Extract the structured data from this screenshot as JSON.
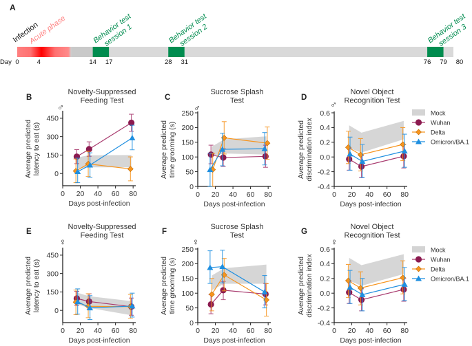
{
  "panel_a": {
    "letter": "A",
    "day_label": "Day",
    "infection_label": "Infection",
    "acute_label": "Acute phase",
    "sessions": [
      {
        "line1": "Behavior test",
        "line2": "session 1",
        "start": 14,
        "end": 17
      },
      {
        "line1": "Behavior test",
        "line2": "session 2",
        "start": 28,
        "end": 31
      },
      {
        "line1": "Behavior test",
        "line2": "session 3",
        "start": 76,
        "end": 79
      }
    ],
    "day_ticks": [
      "0",
      "4",
      "14",
      "17",
      "28",
      "31",
      "76",
      "79",
      "80"
    ],
    "colors": {
      "acute": "#ff0000",
      "session": "#008c4f",
      "bar": "#d9d9d9"
    }
  },
  "legend": {
    "mock": "Mock",
    "wuhan": "Wuhan",
    "delta": "Delta",
    "omicron": "Omicron/BA.1"
  },
  "colors": {
    "mock": "#d4d4d4",
    "wuhan": "#8b1a4f",
    "wuhan_line": "#a83a6e",
    "delta": "#f7941d",
    "omicron": "#1f8fe0"
  },
  "chart_data": [
    {
      "panel": "B",
      "sex": "♂",
      "type": "line",
      "title": [
        "Novelty-Suppressed",
        "Feeding Test"
      ],
      "ylabel": [
        "Average predicted",
        "latency to eat (s)"
      ],
      "xlabel": "Days post-infection",
      "xlim": [
        0,
        83
      ],
      "ylim": [
        -100,
        500
      ],
      "xticks": [
        0,
        20,
        40,
        60,
        80
      ],
      "yticks": [
        0,
        150,
        300,
        450
      ],
      "legend": false,
      "mock": {
        "x": [
          16,
          30,
          78
        ],
        "upper": [
          130,
          148,
          150
        ],
        "lower": [
          40,
          50,
          50
        ]
      },
      "series": [
        {
          "name": "Wuhan",
          "x": [
            16,
            30,
            78
          ],
          "y": [
            137,
            198,
            413
          ],
          "err": [
            [
              80,
              195
            ],
            [
              140,
              258
            ],
            [
              343,
              483
            ]
          ]
        },
        {
          "name": "Delta",
          "x": [
            15,
            29,
            77
          ],
          "y": [
            20,
            78,
            37
          ],
          "err": [
            [
              -75,
              118
            ],
            [
              -25,
              180
            ],
            [
              -60,
              135
            ]
          ]
        },
        {
          "name": "Omicron/BA.1",
          "x": [
            17,
            31,
            79
          ],
          "y": [
            15,
            68,
            290
          ],
          "err": [
            [
              -75,
              125
            ],
            [
              -30,
              168
            ],
            [
              193,
              393
            ]
          ]
        }
      ]
    },
    {
      "panel": "C",
      "sex": "♂",
      "type": "line",
      "title": [
        "Sucrose Splash",
        "Test"
      ],
      "ylabel": [
        "Average predicted",
        "time grooming (s)"
      ],
      "xlabel": "Days post-infection",
      "xlim": [
        0,
        83
      ],
      "ylim": [
        0,
        250
      ],
      "xticks": [
        0,
        20,
        40,
        60,
        80
      ],
      "yticks": [
        0,
        50,
        100,
        150,
        200,
        250
      ],
      "legend": false,
      "mock": {
        "x": [
          16,
          30,
          78
        ],
        "upper": [
          135,
          160,
          170
        ],
        "lower": [
          105,
          112,
          108
        ]
      },
      "series": [
        {
          "name": "Wuhan",
          "x": [
            15,
            29,
            77
          ],
          "y": [
            108,
            98,
            102
          ],
          "err": [
            [
              77,
              140
            ],
            [
              68,
              128
            ],
            [
              65,
              140
            ]
          ]
        },
        {
          "name": "Delta",
          "x": [
            17,
            30,
            79
          ],
          "y": [
            57,
            165,
            147
          ],
          "err": [
            [
              0,
              112
            ],
            [
              110,
              220
            ],
            [
              92,
              202
            ]
          ]
        },
        {
          "name": "Omicron/BA.1",
          "x": [
            14,
            28,
            76
          ],
          "y": [
            57,
            126,
            128
          ],
          "err": [
            [
              0,
              113
            ],
            [
              70,
              181
            ],
            [
              73,
              183
            ]
          ]
        }
      ]
    },
    {
      "panel": "D",
      "sex": "♂",
      "type": "line",
      "title": [
        "Novel Object",
        "Recognition Test"
      ],
      "ylabel": [
        "Average predicted",
        "discrimination index"
      ],
      "xlabel": "Days post-infection",
      "xlim": [
        0,
        83
      ],
      "ylim": [
        -0.4,
        0.6
      ],
      "xticks": [
        0,
        20,
        40,
        60,
        80
      ],
      "yticks": [
        -0.4,
        -0.2,
        0.0,
        0.2,
        0.4,
        0.6
      ],
      "legend": "right",
      "mock": {
        "x": [
          17,
          31,
          79
        ],
        "upper": [
          0.43,
          0.33,
          0.49
        ],
        "lower": [
          0.12,
          0.06,
          0.24
        ]
      },
      "series": [
        {
          "name": "Wuhan",
          "x": [
            17,
            31,
            79
          ],
          "y": [
            -0.03,
            -0.13,
            0.01
          ],
          "err": [
            [
              -0.18,
              0.12
            ],
            [
              -0.28,
              0.02
            ],
            [
              -0.15,
              0.17
            ]
          ]
        },
        {
          "name": "Delta",
          "x": [
            16,
            30,
            78
          ],
          "y": [
            0.13,
            0.03,
            0.17
          ],
          "err": [
            [
              -0.09,
              0.35
            ],
            [
              -0.19,
              0.25
            ],
            [
              -0.05,
              0.4
            ]
          ]
        },
        {
          "name": "Omicron/BA.1",
          "x": [
            18,
            32,
            80
          ],
          "y": [
            0.04,
            -0.06,
            0.08
          ],
          "err": [
            [
              -0.18,
              0.27
            ],
            [
              -0.28,
              0.17
            ],
            [
              -0.14,
              0.31
            ]
          ]
        }
      ]
    },
    {
      "panel": "E",
      "sex": "♀",
      "type": "line",
      "title": [
        "Novelty-Suppressed",
        "Feeding Test"
      ],
      "ylabel": [
        "Average predicted",
        "latency to eat (s)"
      ],
      "xlabel": "Days post-infection",
      "xlim": [
        0,
        83
      ],
      "ylim": [
        -100,
        500
      ],
      "xticks": [
        0,
        20,
        40,
        60,
        80
      ],
      "yticks": [
        0,
        150,
        300,
        450
      ],
      "legend": false,
      "mock": {
        "x": [
          16,
          30,
          78
        ],
        "upper": [
          145,
          115,
          75
        ],
        "lower": [
          50,
          20,
          -40
        ]
      },
      "series": [
        {
          "name": "Wuhan",
          "x": [
            16,
            30,
            78
          ],
          "y": [
            97,
            72,
            30
          ],
          "err": [
            [
              40,
              155
            ],
            [
              10,
              135
            ],
            [
              -40,
              100
            ]
          ]
        },
        {
          "name": "Delta",
          "x": [
            15,
            29,
            77
          ],
          "y": [
            67,
            33,
            30
          ],
          "err": [
            [
              -35,
              165
            ],
            [
              -60,
              135
            ],
            [
              -65,
              130
            ]
          ]
        },
        {
          "name": "Omicron/BA.1",
          "x": [
            17,
            31,
            79
          ],
          "y": [
            70,
            20,
            35
          ],
          "err": [
            [
              -30,
              175
            ],
            [
              -75,
              120
            ],
            [
              -55,
              140
            ]
          ]
        }
      ]
    },
    {
      "panel": "F",
      "sex": "♀",
      "type": "line",
      "title": [
        "Sucrose Splash",
        "Test"
      ],
      "ylabel": [
        "Average predicted",
        "time grooming (s)"
      ],
      "xlabel": "Days post-infection",
      "xlim": [
        0,
        83
      ],
      "ylim": [
        0,
        250
      ],
      "xticks": [
        0,
        20,
        40,
        60,
        80
      ],
      "yticks": [
        0,
        50,
        100,
        150,
        200,
        250
      ],
      "legend": false,
      "mock": {
        "x": [
          16,
          30,
          78
        ],
        "upper": [
          160,
          185,
          197
        ],
        "lower": [
          110,
          132,
          132
        ]
      },
      "series": [
        {
          "name": "Wuhan",
          "x": [
            15,
            29,
            77
          ],
          "y": [
            62,
            110,
            97
          ],
          "err": [
            [
              30,
              95
            ],
            [
              78,
              140
            ],
            [
              60,
              133
            ]
          ]
        },
        {
          "name": "Delta",
          "x": [
            16,
            30,
            78
          ],
          "y": [
            96,
            162,
            77
          ],
          "err": [
            [
              40,
              150
            ],
            [
              108,
              218
            ],
            [
              22,
              132
            ]
          ]
        },
        {
          "name": "Omicron/BA.1",
          "x": [
            14,
            28,
            76
          ],
          "y": [
            187,
            190,
            104
          ],
          "err": [
            [
              133,
              244
            ],
            [
              135,
              246
            ],
            [
              50,
              160
            ]
          ]
        }
      ]
    },
    {
      "panel": "G",
      "sex": "♀",
      "type": "line",
      "title": [
        "Novel Object",
        "Recognition Test"
      ],
      "ylabel": [
        "Average predicted",
        "discrimination index"
      ],
      "xlabel": "Days post-infection",
      "xlim": [
        0,
        83
      ],
      "ylim": [
        -0.4,
        0.6
      ],
      "xticks": [
        0,
        20,
        40,
        60,
        80
      ],
      "yticks": [
        -0.4,
        -0.2,
        0.0,
        0.2,
        0.4,
        0.6
      ],
      "legend": "right",
      "mock": {
        "x": [
          17,
          31,
          79
        ],
        "upper": [
          0.48,
          0.38,
          0.53
        ],
        "lower": [
          0.17,
          0.1,
          0.26
        ]
      },
      "series": [
        {
          "name": "Wuhan",
          "x": [
            17,
            31,
            79
          ],
          "y": [
            0.01,
            -0.09,
            0.05
          ],
          "err": [
            [
              -0.14,
              0.16
            ],
            [
              -0.24,
              0.06
            ],
            [
              -0.11,
              0.2
            ]
          ]
        },
        {
          "name": "Delta",
          "x": [
            16,
            30,
            78
          ],
          "y": [
            0.17,
            0.07,
            0.21
          ],
          "err": [
            [
              -0.06,
              0.39
            ],
            [
              -0.16,
              0.29
            ],
            [
              -0.01,
              0.44
            ]
          ]
        },
        {
          "name": "Omicron/BA.1",
          "x": [
            18,
            32,
            80
          ],
          "y": [
            0.08,
            -0.02,
            0.12
          ],
          "err": [
            [
              -0.14,
              0.31
            ],
            [
              -0.24,
              0.2
            ],
            [
              -0.1,
              0.35
            ]
          ]
        }
      ]
    }
  ]
}
